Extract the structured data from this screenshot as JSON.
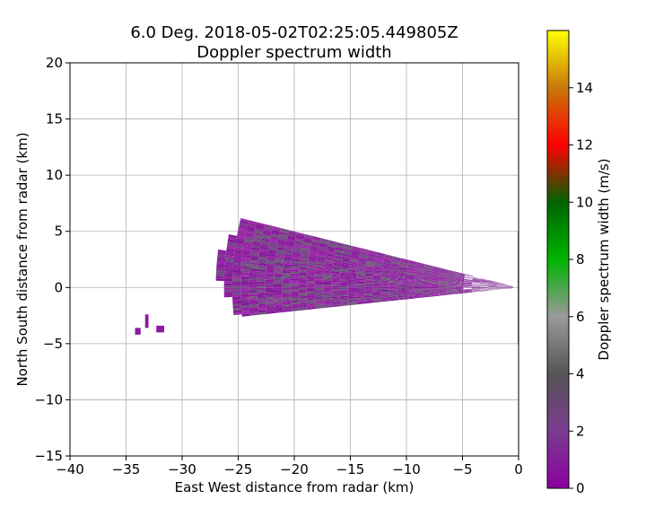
{
  "chart_data": {
    "type": "heatmap",
    "title_line1": "6.0 Deg. 2018-05-02T02:25:05.449805Z",
    "title_line2": "Doppler spectrum width",
    "xlabel": "East West distance from radar (km)",
    "ylabel": "North South distance from radar (km)",
    "xlim": [
      -40,
      0
    ],
    "ylim": [
      -15,
      20
    ],
    "xticks": [
      -40,
      -35,
      -30,
      -25,
      -20,
      -15,
      -10,
      -5,
      0
    ],
    "yticks": [
      -15,
      -10,
      -5,
      0,
      5,
      10,
      15,
      20
    ],
    "xtick_labels": [
      "−40",
      "−35",
      "−30",
      "−25",
      "−20",
      "−15",
      "−10",
      "−5",
      "0"
    ],
    "ytick_labels": [
      "−15",
      "−10",
      "−5",
      "0",
      "5",
      "10",
      "15",
      "20"
    ],
    "grid": true,
    "sector": {
      "apex": [
        0,
        0
      ],
      "range_km": [
        0.5,
        27
      ],
      "azimuth_deg": [
        -96,
        -76
      ],
      "dominant_width_ms": 1.0
    },
    "echo_fragments": [
      {
        "x": [
          -34.2,
          -33.7
        ],
        "y": [
          -4.2,
          -3.6
        ],
        "width_ms": 1.0
      },
      {
        "x": [
          -33.3,
          -33.0
        ],
        "y": [
          -3.6,
          -2.4
        ],
        "width_ms": 1.0
      },
      {
        "x": [
          -32.3,
          -31.6
        ],
        "y": [
          -4.0,
          -3.4
        ],
        "width_ms": 1.0
      }
    ],
    "radar_marker": {
      "x": 0,
      "y": [
        -5,
        5
      ]
    },
    "colorbar": {
      "label": "Doppler spectrum width (m/s)",
      "min": 0,
      "max": 16,
      "ticks": [
        0,
        2,
        4,
        6,
        8,
        10,
        12,
        14
      ],
      "tick_labels": [
        "0",
        "2",
        "4",
        "6",
        "8",
        "10",
        "12",
        "14"
      ],
      "colors": [
        "#8c00a0",
        "#7a3c8f",
        "#555555",
        "#999999",
        "#00b400",
        "#006400",
        "#ff0000",
        "#c8780a",
        "#ffff00"
      ]
    }
  }
}
